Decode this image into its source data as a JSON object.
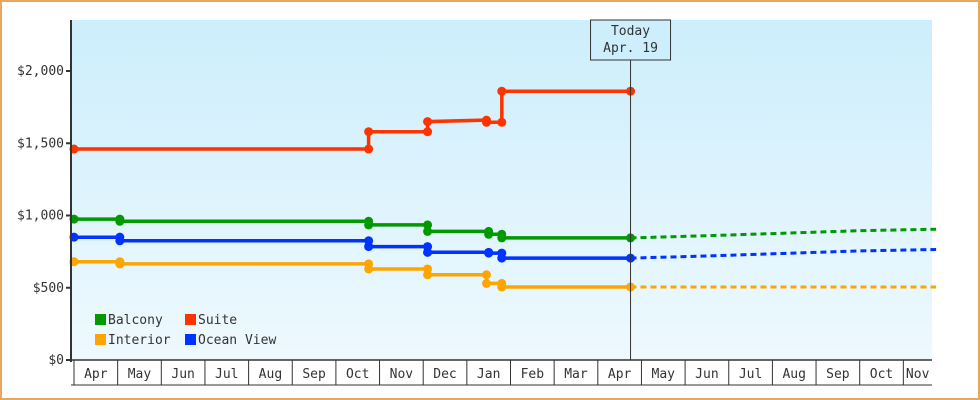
{
  "chart_data": {
    "type": "line",
    "title": "",
    "xlabel": "",
    "ylabel": "",
    "ylim": [
      0,
      2300
    ],
    "y_ticks": [
      "$0",
      "$500",
      "$1,000",
      "$1,500",
      "$2,000"
    ],
    "y_tick_values": [
      0,
      500,
      1000,
      1500,
      2000
    ],
    "x_ticks": [
      "Apr",
      "May",
      "Jun",
      "Jul",
      "Aug",
      "Sep",
      "Oct",
      "Nov",
      "Dec",
      "Jan",
      "Feb",
      "Mar",
      "Apr",
      "May",
      "Jun",
      "Jul",
      "Aug",
      "Sep",
      "Oct",
      "Nov"
    ],
    "grid": false,
    "legend_position": "bottom-left inside",
    "annotation": {
      "line1": "Today",
      "line2": "Apr. 19"
    },
    "series": [
      {
        "name": "Balcony",
        "color": "#009900",
        "style": "step",
        "points": [
          [
            0,
            975
          ],
          [
            1.05,
            975
          ],
          [
            1.05,
            960
          ],
          [
            6.75,
            960
          ],
          [
            6.75,
            935
          ],
          [
            8.1,
            935
          ],
          [
            8.1,
            890
          ],
          [
            9.5,
            890
          ],
          [
            9.5,
            870
          ],
          [
            9.8,
            870
          ],
          [
            9.8,
            845
          ],
          [
            12.75,
            845
          ]
        ],
        "forecast": [
          [
            12.75,
            845
          ],
          [
            14.5,
            860
          ],
          [
            16,
            875
          ],
          [
            18,
            895
          ],
          [
            19.75,
            905
          ]
        ]
      },
      {
        "name": "Suite",
        "color": "#ff3300",
        "style": "step",
        "points": [
          [
            0,
            1460
          ],
          [
            6.75,
            1460
          ],
          [
            6.75,
            1580
          ],
          [
            8.1,
            1580
          ],
          [
            8.1,
            1650
          ],
          [
            9.45,
            1660
          ],
          [
            9.45,
            1645
          ],
          [
            9.8,
            1645
          ],
          [
            9.8,
            1860
          ],
          [
            12.75,
            1860
          ]
        ]
      },
      {
        "name": "Interior",
        "color": "#ffa500",
        "style": "step",
        "points": [
          [
            0,
            680
          ],
          [
            1.05,
            680
          ],
          [
            1.05,
            665
          ],
          [
            6.75,
            665
          ],
          [
            6.75,
            630
          ],
          [
            8.1,
            630
          ],
          [
            8.1,
            590
          ],
          [
            9.45,
            590
          ],
          [
            9.45,
            530
          ],
          [
            9.8,
            530
          ],
          [
            9.8,
            505
          ],
          [
            12.75,
            505
          ]
        ],
        "forecast": [
          [
            12.75,
            505
          ],
          [
            19.75,
            505
          ]
        ]
      },
      {
        "name": "Ocean View",
        "color": "#0033ff",
        "style": "step",
        "points": [
          [
            0,
            850
          ],
          [
            1.05,
            850
          ],
          [
            1.05,
            825
          ],
          [
            6.75,
            825
          ],
          [
            6.75,
            785
          ],
          [
            8.1,
            785
          ],
          [
            8.1,
            745
          ],
          [
            9.5,
            745
          ],
          [
            9.5,
            740
          ],
          [
            9.8,
            740
          ],
          [
            9.8,
            705
          ],
          [
            12.75,
            705
          ]
        ],
        "forecast": [
          [
            12.75,
            705
          ],
          [
            14.5,
            720
          ],
          [
            16,
            735
          ],
          [
            18,
            755
          ],
          [
            19.75,
            765
          ]
        ]
      }
    ]
  },
  "legend": [
    {
      "label": "Balcony",
      "color": "#009900"
    },
    {
      "label": "Suite",
      "color": "#ff3300"
    },
    {
      "label": "Interior",
      "color": "#ffa500"
    },
    {
      "label": "Ocean View",
      "color": "#0033ff"
    }
  ],
  "today_marker": {
    "line1": "Today",
    "line2": "Apr. 19"
  }
}
